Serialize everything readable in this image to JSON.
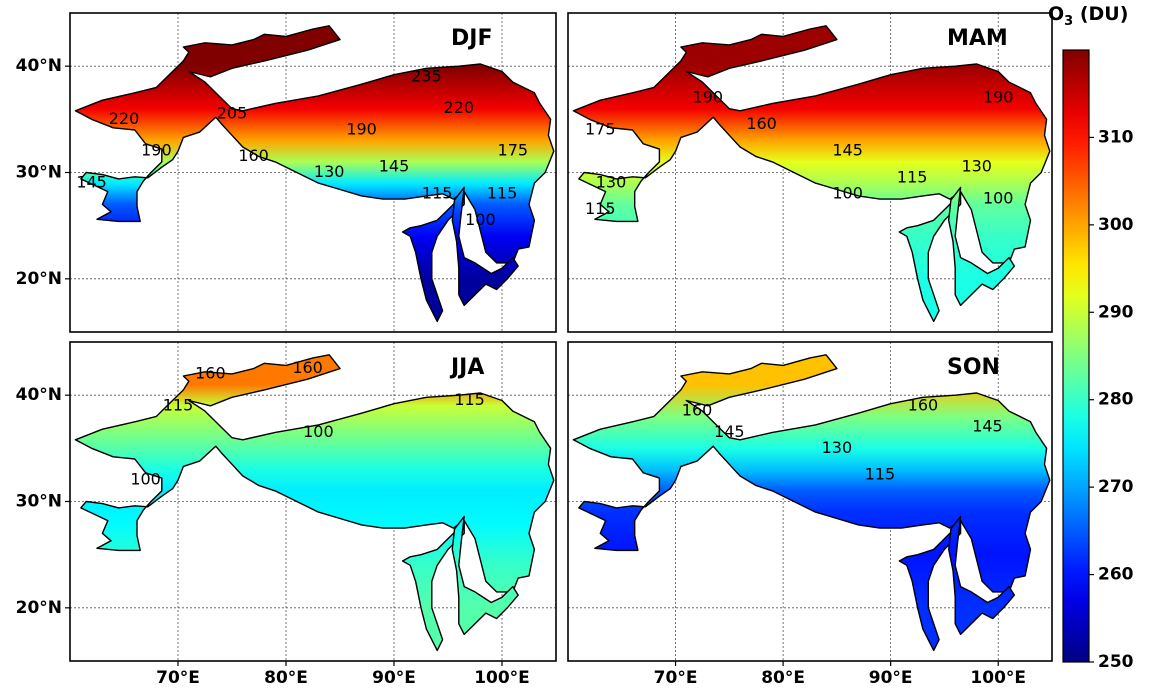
{
  "chart_data": {
    "type": "heatmap",
    "colorbar": {
      "label_main": "O",
      "label_sub": "3",
      "label_unit": " (DU)",
      "range": [
        250,
        320
      ],
      "ticks": [
        "250",
        "260",
        "270",
        "280",
        "290",
        "300",
        "310"
      ],
      "colormap": "jet"
    },
    "axes": {
      "lon_ticks": [
        "70°E",
        "80°E",
        "90°E",
        "100°E"
      ],
      "lat_ticks": [
        "20°N",
        "30°N",
        "40°N"
      ],
      "lon_range": [
        60,
        105
      ],
      "lat_range": [
        15,
        45
      ],
      "grid": true
    },
    "panels": [
      {
        "season": "DJF",
        "gradient": [
          {
            "lat": 40,
            "value": 320
          },
          {
            "lat": 36,
            "value": 312
          },
          {
            "lat": 33,
            "value": 300
          },
          {
            "lat": 31,
            "value": 288
          },
          {
            "lat": 29,
            "value": 275
          },
          {
            "lat": 27,
            "value": 265
          },
          {
            "lat": 24,
            "value": 258
          },
          {
            "lat": 20,
            "value": 252
          }
        ],
        "contours": [
          {
            "label": "235",
            "lon": 93,
            "lat": 39
          },
          {
            "label": "220",
            "lon": 65,
            "lat": 35
          },
          {
            "label": "220",
            "lon": 96,
            "lat": 36
          },
          {
            "label": "205",
            "lon": 75,
            "lat": 35.5
          },
          {
            "label": "190",
            "lon": 68,
            "lat": 32
          },
          {
            "label": "190",
            "lon": 87,
            "lat": 34
          },
          {
            "label": "175",
            "lon": 101,
            "lat": 32
          },
          {
            "label": "160",
            "lon": 77,
            "lat": 31.5
          },
          {
            "label": "145",
            "lon": 62,
            "lat": 29
          },
          {
            "label": "145",
            "lon": 90,
            "lat": 30.5
          },
          {
            "label": "130",
            "lon": 84,
            "lat": 30
          },
          {
            "label": "115",
            "lon": 94,
            "lat": 28
          },
          {
            "label": "115",
            "lon": 100,
            "lat": 28
          },
          {
            "label": "100",
            "lon": 98,
            "lat": 25.5
          }
        ]
      },
      {
        "season": "MAM",
        "gradient": [
          {
            "lat": 40,
            "value": 318
          },
          {
            "lat": 36,
            "value": 312
          },
          {
            "lat": 33,
            "value": 300
          },
          {
            "lat": 31,
            "value": 292
          },
          {
            "lat": 29,
            "value": 288
          },
          {
            "lat": 27,
            "value": 283
          },
          {
            "lat": 24,
            "value": 280
          },
          {
            "lat": 20,
            "value": 278
          }
        ],
        "contours": [
          {
            "label": "190",
            "lon": 73,
            "lat": 37
          },
          {
            "label": "190",
            "lon": 100,
            "lat": 37
          },
          {
            "label": "175",
            "lon": 63,
            "lat": 34
          },
          {
            "label": "160",
            "lon": 78,
            "lat": 34.5
          },
          {
            "label": "145",
            "lon": 86,
            "lat": 32
          },
          {
            "label": "130",
            "lon": 98,
            "lat": 30.5
          },
          {
            "label": "130",
            "lon": 64,
            "lat": 29
          },
          {
            "label": "115",
            "lon": 92,
            "lat": 29.5
          },
          {
            "label": "115",
            "lon": 63,
            "lat": 26.5
          },
          {
            "label": "100",
            "lon": 86,
            "lat": 28
          },
          {
            "label": "100",
            "lon": 100,
            "lat": 27.5
          }
        ]
      },
      {
        "season": "JJA",
        "gradient": [
          {
            "lat": 41,
            "value": 303
          },
          {
            "lat": 39,
            "value": 290
          },
          {
            "lat": 36,
            "value": 284
          },
          {
            "lat": 33,
            "value": 278
          },
          {
            "lat": 31,
            "value": 275
          },
          {
            "lat": 28,
            "value": 276
          },
          {
            "lat": 24,
            "value": 280
          },
          {
            "lat": 20,
            "value": 282
          }
        ],
        "contours": [
          {
            "label": "160",
            "lon": 73,
            "lat": 42
          },
          {
            "label": "160",
            "lon": 82,
            "lat": 42.5
          },
          {
            "label": "115",
            "lon": 70,
            "lat": 39
          },
          {
            "label": "115",
            "lon": 97,
            "lat": 39.5
          },
          {
            "label": "100",
            "lon": 83,
            "lat": 36.5
          },
          {
            "label": "100",
            "lon": 67,
            "lat": 32
          }
        ]
      },
      {
        "season": "SON",
        "gradient": [
          {
            "lat": 41,
            "value": 298
          },
          {
            "lat": 38,
            "value": 285
          },
          {
            "lat": 35,
            "value": 278
          },
          {
            "lat": 33,
            "value": 272
          },
          {
            "lat": 31,
            "value": 265
          },
          {
            "lat": 29,
            "value": 262
          },
          {
            "lat": 25,
            "value": 260
          },
          {
            "lat": 20,
            "value": 262
          }
        ],
        "contours": [
          {
            "label": "160",
            "lon": 72,
            "lat": 38.5
          },
          {
            "label": "160",
            "lon": 93,
            "lat": 39
          },
          {
            "label": "145",
            "lon": 75,
            "lat": 36.5
          },
          {
            "label": "145",
            "lon": 99,
            "lat": 37
          },
          {
            "label": "130",
            "lon": 85,
            "lat": 35
          },
          {
            "label": "115",
            "lon": 89,
            "lat": 32.5
          }
        ]
      }
    ]
  }
}
